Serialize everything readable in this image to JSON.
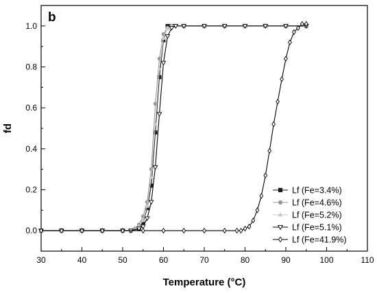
{
  "chart_data": {
    "type": "line",
    "panel_label": "b",
    "xlabel": "Temperature (°C)",
    "ylabel": "fd",
    "xlim": [
      30,
      110
    ],
    "ylim": [
      -0.1,
      1.1
    ],
    "xticks": [
      30,
      40,
      50,
      60,
      70,
      80,
      90,
      100,
      110
    ],
    "yticks": [
      0.0,
      0.2,
      0.4,
      0.6,
      0.8,
      1.0
    ],
    "grid": false,
    "legend_position": "bottom-right",
    "series": [
      {
        "name": "Lf (Fe=3.4%)",
        "marker": "square-filled",
        "color": "#1a1a1a",
        "x": [
          30,
          35,
          40,
          45,
          50,
          52,
          54,
          55,
          56,
          57,
          58,
          59,
          60,
          61,
          62,
          65,
          70,
          75,
          80,
          85,
          90,
          95
        ],
        "y": [
          0.0,
          0.0,
          0.0,
          0.0,
          0.0,
          0.0,
          0.01,
          0.04,
          0.11,
          0.22,
          0.48,
          0.75,
          0.93,
          1.0,
          1.0,
          1.0,
          1.0,
          1.0,
          1.0,
          1.0,
          1.0,
          1.0
        ]
      },
      {
        "name": "Lf (Fe=4.6%)",
        "marker": "circle-filled",
        "color": "#999999",
        "x": [
          30,
          35,
          40,
          45,
          50,
          52,
          53,
          54,
          55,
          56,
          57,
          58,
          59,
          60,
          61,
          62,
          65,
          70,
          75,
          80,
          85,
          90,
          95
        ],
        "y": [
          0.0,
          0.0,
          0.0,
          0.0,
          0.0,
          0.0,
          0.01,
          0.03,
          0.07,
          0.14,
          0.3,
          0.62,
          0.84,
          0.96,
          0.99,
          1.0,
          1.0,
          1.0,
          1.0,
          1.0,
          1.0,
          1.0,
          1.0
        ]
      },
      {
        "name": "Lf (Fe=5.2%)",
        "marker": "triangle-up-filled",
        "color": "#c8c8c8",
        "x": [
          30,
          35,
          40,
          45,
          50,
          52,
          54,
          55,
          56,
          57,
          58,
          59,
          60,
          61,
          62,
          65,
          70,
          75,
          80,
          85,
          90,
          95
        ],
        "y": [
          0.0,
          0.0,
          0.0,
          0.0,
          0.0,
          0.0,
          0.02,
          0.05,
          0.12,
          0.26,
          0.52,
          0.79,
          0.94,
          0.99,
          1.0,
          1.0,
          1.0,
          1.0,
          1.0,
          1.0,
          1.0,
          1.0
        ]
      },
      {
        "name": "Lf (Fe=5.1%)",
        "marker": "triangle-down-open",
        "color": "#000000",
        "x": [
          30,
          35,
          40,
          45,
          50,
          52,
          54,
          55,
          56,
          57,
          58,
          59,
          60,
          61,
          62,
          63,
          65,
          70,
          75,
          80,
          85,
          90,
          95
        ],
        "y": [
          0.0,
          0.0,
          0.0,
          0.0,
          0.0,
          0.0,
          0.01,
          0.02,
          0.06,
          0.14,
          0.31,
          0.57,
          0.82,
          0.95,
          0.99,
          1.0,
          1.0,
          1.0,
          1.0,
          1.0,
          1.0,
          1.0,
          1.0
        ]
      },
      {
        "name": "Lf (Fe=41.9%)",
        "marker": "diamond-open",
        "color": "#000000",
        "x": [
          30,
          35,
          40,
          45,
          50,
          55,
          60,
          65,
          70,
          75,
          78,
          79,
          80,
          81,
          82,
          83,
          84,
          85,
          86,
          87,
          88,
          89,
          90,
          91,
          92,
          93,
          94,
          95
        ],
        "y": [
          0.0,
          0.0,
          0.0,
          0.0,
          0.0,
          0.0,
          0.0,
          0.0,
          0.0,
          0.0,
          0.0,
          0.0,
          0.01,
          0.02,
          0.05,
          0.1,
          0.17,
          0.27,
          0.39,
          0.52,
          0.63,
          0.74,
          0.84,
          0.92,
          0.97,
          0.99,
          1.01,
          1.01
        ]
      }
    ]
  }
}
